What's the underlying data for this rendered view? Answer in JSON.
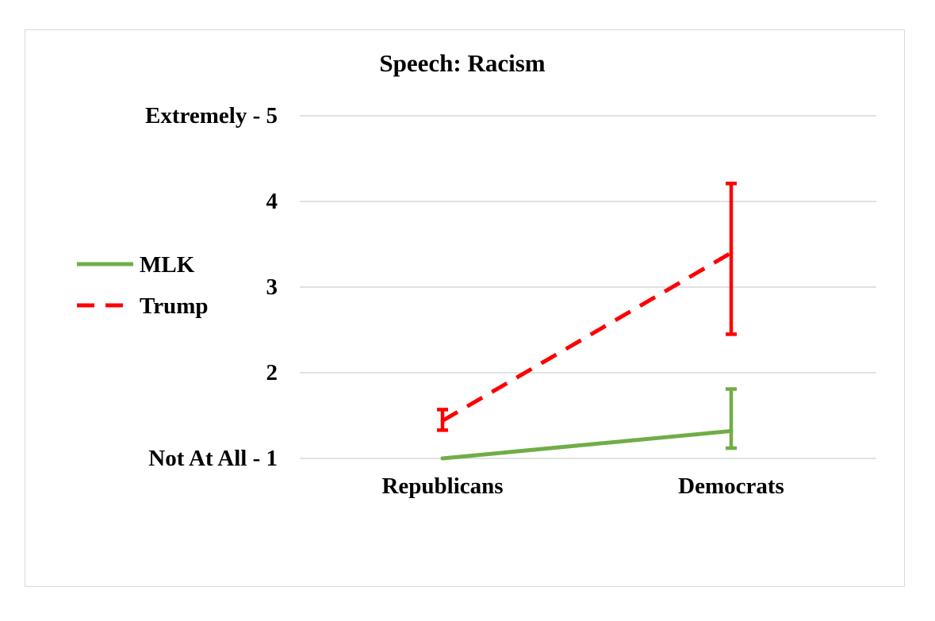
{
  "chart_data": {
    "type": "line",
    "title": "Speech: Racism",
    "xlabel": "",
    "ylabel": "",
    "categories": [
      "Republicans",
      "Democrats"
    ],
    "ylim": [
      1,
      5
    ],
    "yticks": [
      {
        "value": 1,
        "label": "Not At All  - 1"
      },
      {
        "value": 2,
        "label": "2"
      },
      {
        "value": 3,
        "label": "3"
      },
      {
        "value": 4,
        "label": "4"
      },
      {
        "value": 5,
        "label": "Extremely - 5"
      }
    ],
    "grid": true,
    "legend_position": "left",
    "series": [
      {
        "name": "MLK",
        "color": "#70ad47",
        "dash": "solid",
        "values": [
          1.0,
          1.32
        ],
        "error_bars": [
          null,
          {
            "low": 1.12,
            "high": 1.81
          }
        ]
      },
      {
        "name": "Trump",
        "color": "#ff0000",
        "dash": "dashed",
        "values": [
          1.44,
          3.4
        ],
        "error_bars": [
          {
            "low": 1.33,
            "high": 1.57
          },
          {
            "low": 2.45,
            "high": 4.21
          }
        ]
      }
    ]
  }
}
